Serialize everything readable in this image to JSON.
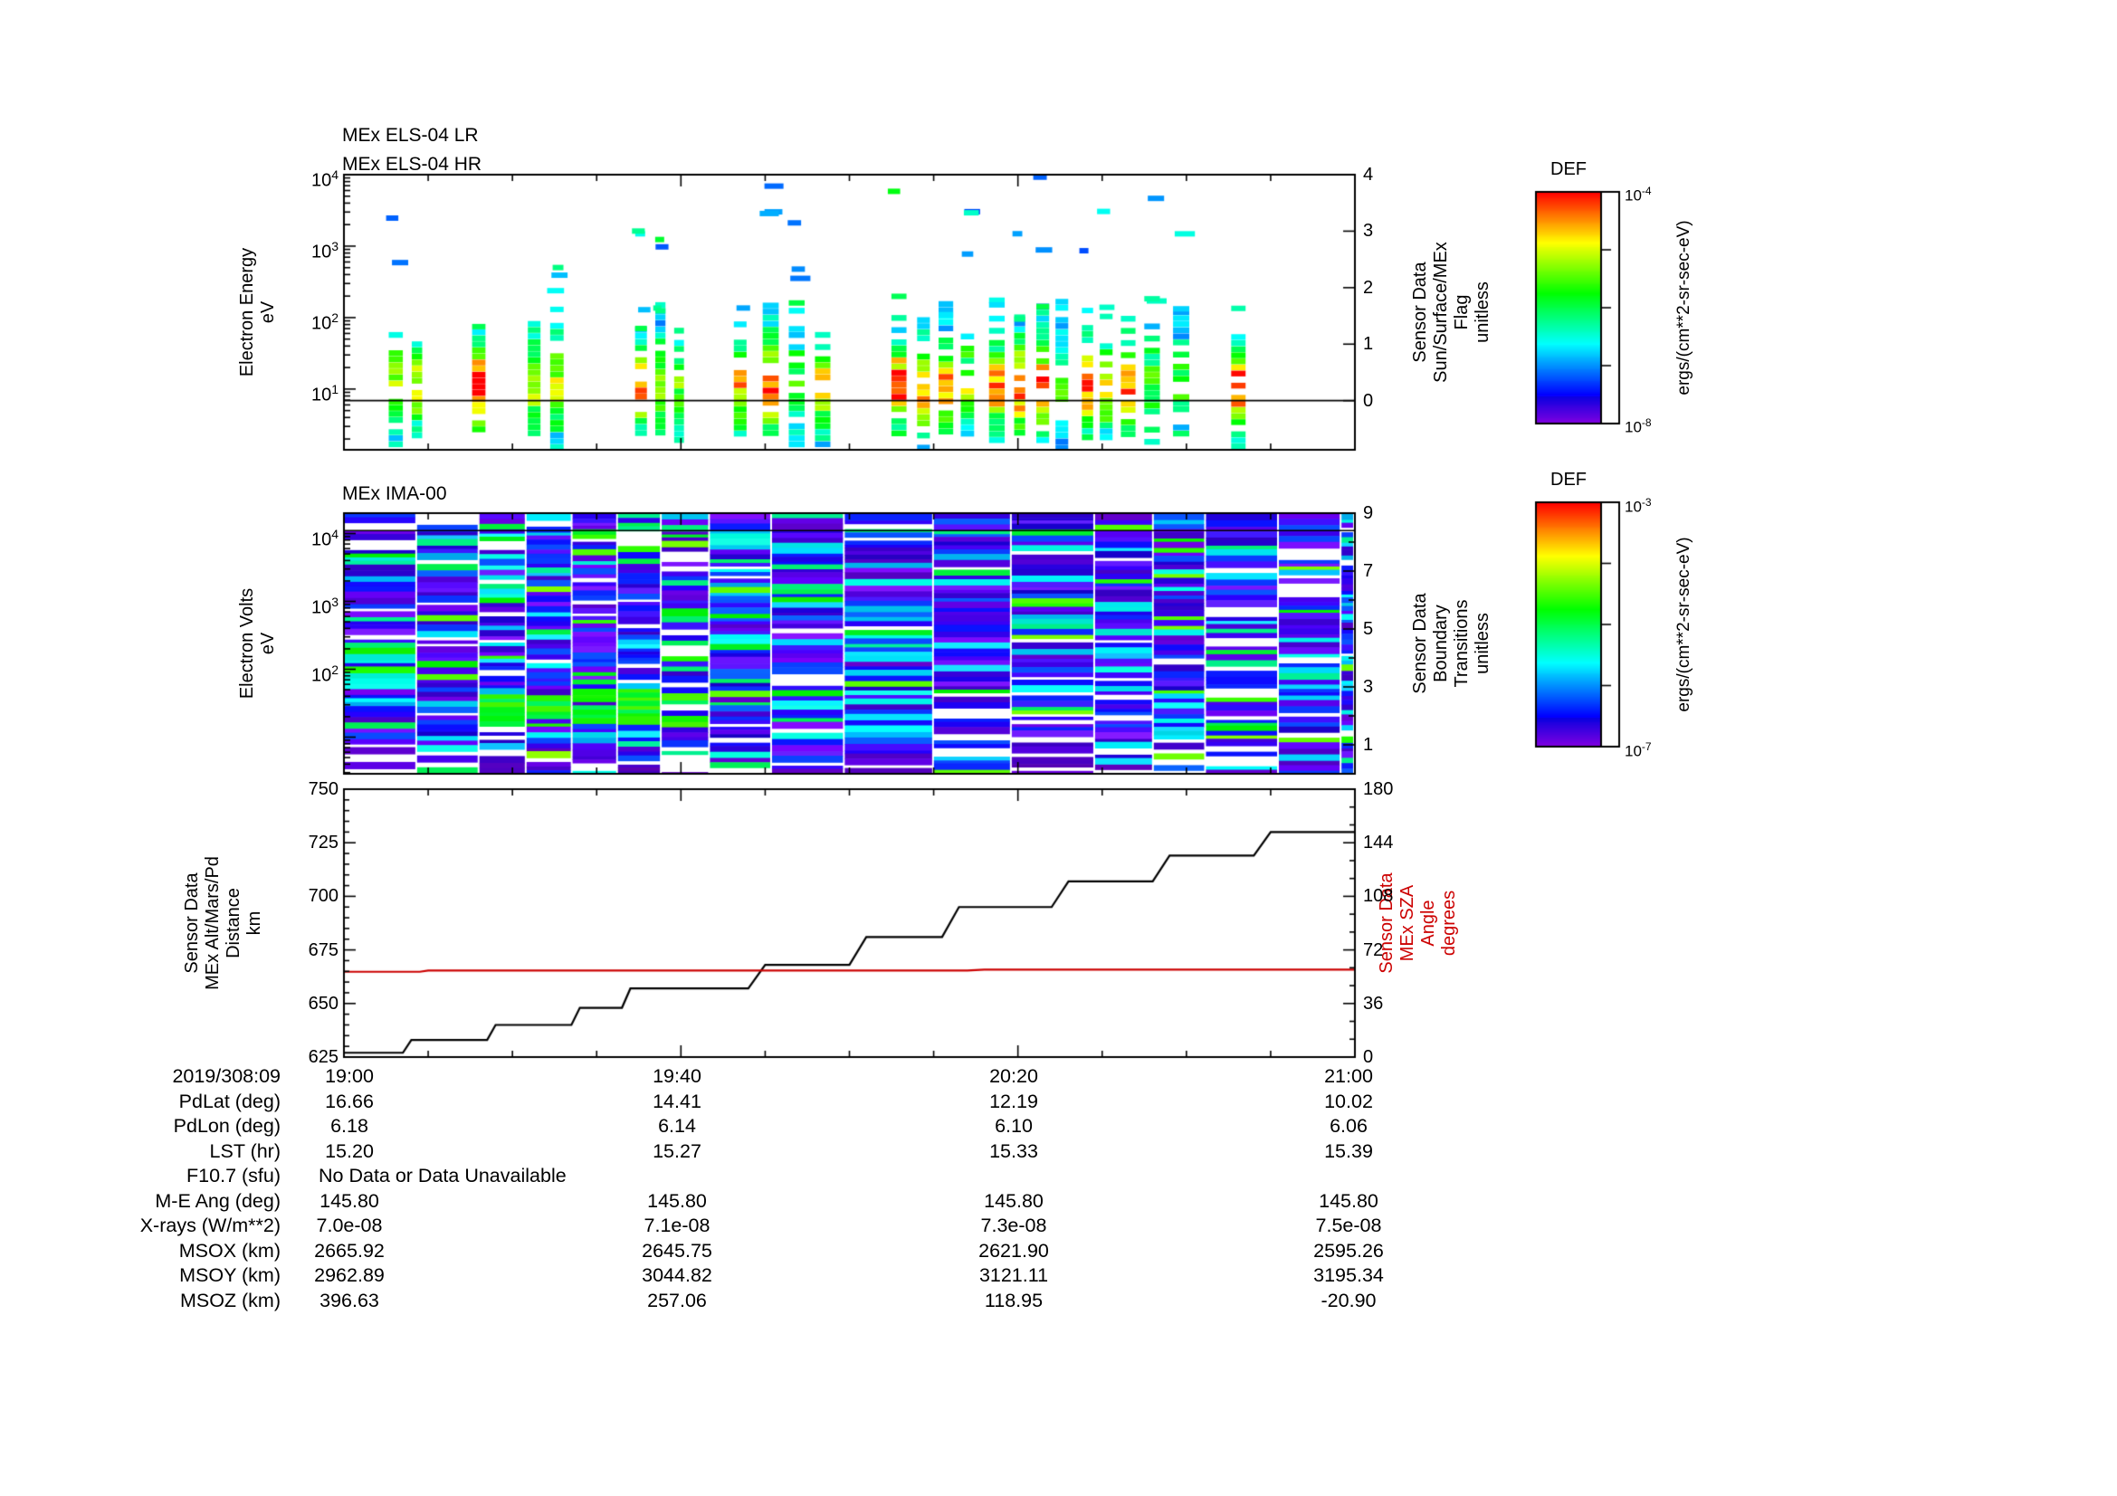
{
  "colorbars": [
    {
      "title": "DEF",
      "units": "ergs/(cm**2-sr-sec-eV)",
      "top_label": {
        "base": "10",
        "exp": "-4"
      },
      "bottom_label": {
        "base": "10",
        "exp": "-8"
      }
    },
    {
      "title": "DEF",
      "units": "ergs/(cm**2-sr-sec-eV)",
      "top_label": {
        "base": "10",
        "exp": "-3"
      },
      "bottom_label": {
        "base": "10",
        "exp": "-7"
      }
    }
  ],
  "table": {
    "rows": [
      {
        "label": "2019/308:09",
        "values": [
          "19:00",
          "19:40",
          "20:20",
          "21:00"
        ]
      },
      {
        "label": "PdLat (deg)",
        "values": [
          "16.66",
          "14.41",
          "12.19",
          "10.02"
        ]
      },
      {
        "label": "PdLon (deg)",
        "values": [
          "6.18",
          "6.14",
          "6.10",
          "6.06"
        ]
      },
      {
        "label": "LST (hr)",
        "values": [
          "15.20",
          "15.27",
          "15.33",
          "15.39"
        ]
      },
      {
        "label": "F10.7 (sfu)",
        "values": [
          "No Data or Data Unavailable"
        ]
      },
      {
        "label": "M-E Ang (deg)",
        "values": [
          "145.80",
          "145.80",
          "145.80",
          "145.80"
        ]
      },
      {
        "label": "X-rays (W/m**2)",
        "values": [
          "7.0e-08",
          "7.1e-08",
          "7.3e-08",
          "7.5e-08"
        ]
      },
      {
        "label": "MSOX (km)",
        "values": [
          "2665.92",
          "2645.75",
          "2621.90",
          "2595.26"
        ]
      },
      {
        "label": "MSOY (km)",
        "values": [
          "2962.89",
          "3044.82",
          "3121.11",
          "3195.34"
        ]
      },
      {
        "label": "MSOZ (km)",
        "values": [
          "396.63",
          "257.06",
          "118.95",
          "-20.90"
        ]
      }
    ]
  },
  "chart_data": [
    {
      "type": "heatmap",
      "name": "els-energy-spectrogram",
      "title": "MEx ELS-04 LR",
      "title2": "MEx ELS-04 HR",
      "y_axis": {
        "label_lines": [
          "Electron Energy",
          "eV"
        ],
        "scale": "log",
        "range_exp": [
          0.15,
          4.0
        ],
        "tick_exps": [
          1,
          2,
          3,
          4
        ]
      },
      "right_axis": {
        "label_lines": [
          "Sensor Data",
          "Sun/Surface/MEx",
          "Flag",
          "unitless"
        ],
        "range": [
          -0.87,
          4
        ],
        "ticks": [
          0,
          1,
          2,
          3,
          4
        ]
      },
      "x_axis": {
        "start": "19:00",
        "end": "21:00",
        "range_minutes": [
          0,
          120
        ],
        "major_tick_minutes": [
          0,
          40,
          80,
          120
        ],
        "minor_tick_step_minutes": 10
      },
      "flag_line_value": 0,
      "colormap": "rainbow",
      "pattern": {
        "seed": 7,
        "description": "sparse vertical electron-flux columns: intense green/yellow/red flux 3-200 eV, scattered blue and cyan bars from 200 eV to 10 keV, data gaps between columns"
      }
    },
    {
      "type": "heatmap",
      "name": "ima-ion-spectrogram",
      "title": "MEx IMA-00",
      "y_axis": {
        "label_lines": [
          "Electron Volts",
          "eV"
        ],
        "scale": "log",
        "range_exp": [
          0.46,
          4.3
        ],
        "tick_exps": [
          2,
          3,
          4
        ]
      },
      "right_axis": {
        "label_lines": [
          "Sensor Data",
          "Boundary",
          "Transitions",
          "unitless"
        ],
        "range": [
          0,
          9
        ],
        "ticks": [
          1,
          3,
          5,
          7,
          9
        ]
      },
      "x_axis": {
        "start": "19:00",
        "end": "21:00",
        "range_minutes": [
          0,
          120
        ],
        "major_tick_minutes": [
          0,
          40,
          80,
          120
        ],
        "minor_tick_step_minutes": 10
      },
      "overlay_line_value": 8.4,
      "colormap": "rainbow",
      "pattern": {
        "seed": 13,
        "description": "dense horizontally banded ion spectrogram in column blocks, dominated by violet/indigo and blue stripes with cyan runs, a bright green band near 30 eV between 19:10 and 19:45, and white data gaps"
      }
    },
    {
      "type": "line",
      "name": "altitude-sza-panel",
      "left_axis": {
        "label_lines": [
          "Sensor Data",
          "MEx Alt/Mars/Pd",
          "Distance",
          "km"
        ],
        "range": [
          625,
          750
        ],
        "ticks": [
          625,
          650,
          675,
          700,
          725,
          750
        ],
        "color": "#000000"
      },
      "right_axis": {
        "label_lines": [
          "Sensor Data",
          "MEx SZA",
          "Angle",
          "degrees"
        ],
        "range": [
          0,
          180
        ],
        "ticks": [
          0,
          36,
          72,
          108,
          144,
          180
        ],
        "color": "#cc0000"
      },
      "x_axis": {
        "start": "19:00",
        "end": "21:00",
        "range_minutes": [
          0,
          120
        ],
        "major_tick_minutes": [
          0,
          40,
          80,
          120
        ],
        "minor_tick_step_minutes": 10,
        "tick_labels": [
          "19:00",
          "19:40",
          "20:20",
          "21:00"
        ]
      },
      "series": [
        {
          "name": "MEx altitude",
          "axis": "left",
          "units": "km",
          "color": "#000000",
          "points_min_value": [
            [
              0,
              627
            ],
            [
              7,
              627
            ],
            [
              8,
              633
            ],
            [
              17,
              633
            ],
            [
              18,
              640
            ],
            [
              27,
              640
            ],
            [
              28,
              648
            ],
            [
              33,
              648
            ],
            [
              34,
              657
            ],
            [
              48,
              657
            ],
            [
              50,
              668
            ],
            [
              60,
              668
            ],
            [
              62,
              681
            ],
            [
              71,
              681
            ],
            [
              73,
              695
            ],
            [
              84,
              695
            ],
            [
              86,
              707
            ],
            [
              96,
              707
            ],
            [
              98,
              719
            ],
            [
              108,
              719
            ],
            [
              110,
              730
            ],
            [
              120,
              730
            ]
          ]
        },
        {
          "name": "MEx SZA",
          "axis": "right",
          "units": "degrees",
          "color": "#cc0000",
          "points_min_value": [
            [
              0,
              57.3
            ],
            [
              9,
              57.3
            ],
            [
              10,
              58.1
            ],
            [
              74,
              58.1
            ],
            [
              76,
              58.8
            ],
            [
              120,
              58.8
            ]
          ]
        }
      ]
    }
  ]
}
